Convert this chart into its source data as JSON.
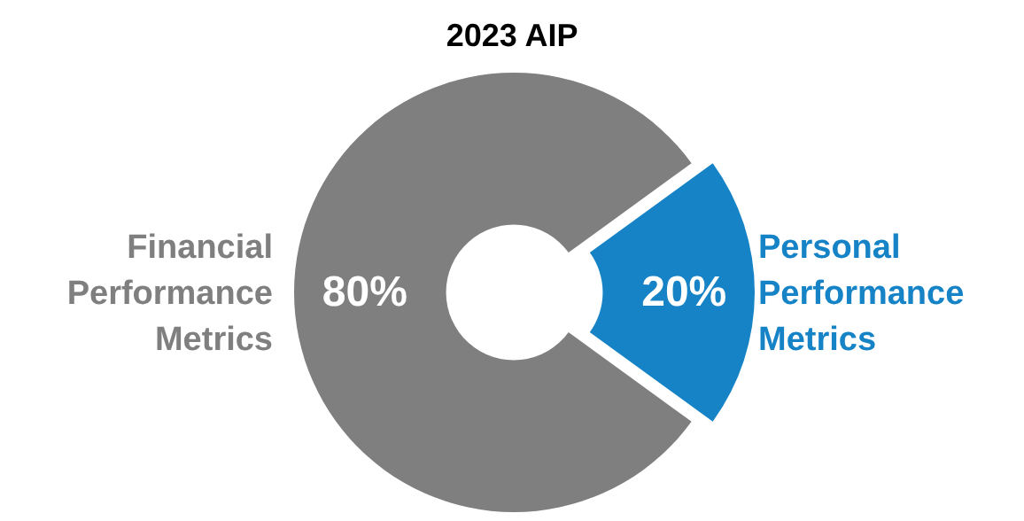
{
  "chart_data": {
    "type": "donut",
    "title": "2023 AIP",
    "categories": [
      "Financial\nPerformance\nMetrics",
      "Personal\nPerformance\nMetrics"
    ],
    "values": [
      80,
      20
    ],
    "colors": [
      "#7f7f7f",
      "#1583c6"
    ],
    "value_labels": [
      "80%",
      "20%"
    ],
    "legend": false
  }
}
